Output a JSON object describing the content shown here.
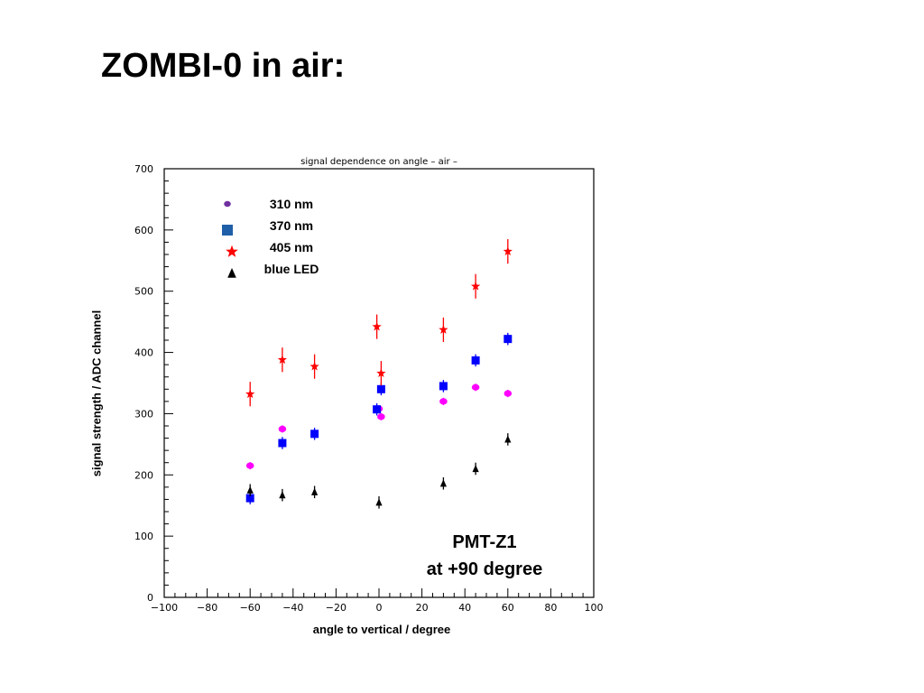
{
  "slide": {
    "title": "ZOMBI-0 in air:"
  },
  "chart_data": {
    "type": "scatter",
    "title": "signal dependence on angle – air –",
    "xlabel": "angle to vertical / degree",
    "ylabel": "signal strength / ADC channel",
    "xlim": [
      -100,
      100
    ],
    "ylim": [
      0,
      700
    ],
    "xticks": [
      -100,
      -80,
      -60,
      -40,
      -20,
      0,
      20,
      40,
      60,
      80,
      100
    ],
    "xtick_labels": [
      "−100",
      "−80",
      "−60",
      "−40",
      "−20",
      "0",
      "20",
      "40",
      "60",
      "80",
      "100"
    ],
    "yticks": [
      0,
      100,
      200,
      300,
      400,
      500,
      600,
      700
    ],
    "ytick_labels": [
      "0",
      "100",
      "200",
      "300",
      "400",
      "500",
      "600",
      "700"
    ],
    "grid": false,
    "legend_position": "top-left",
    "annotation": [
      "PMT-Z1",
      "at  +90 degree"
    ],
    "series": [
      {
        "name": "310 nm",
        "marker": "circle",
        "color": "#ff00ff",
        "legend_color": "#7030a0",
        "x": [
          -60,
          -45,
          -30,
          0,
          1,
          30,
          45,
          60
        ],
        "y": [
          215,
          275,
          268,
          308,
          295,
          320,
          343,
          333
        ],
        "err": [
          6,
          6,
          6,
          6,
          6,
          6,
          6,
          6
        ]
      },
      {
        "name": "370 nm",
        "marker": "square",
        "color": "#0000ff",
        "legend_color": "#1f5fa8",
        "x": [
          -60,
          -45,
          -30,
          -1,
          1,
          30,
          45,
          60
        ],
        "y": [
          162,
          252,
          267,
          307,
          340,
          345,
          387,
          422
        ],
        "err": [
          10,
          10,
          10,
          10,
          10,
          10,
          10,
          10
        ]
      },
      {
        "name": "405 nm",
        "marker": "star",
        "color": "#ff0000",
        "legend_color": "#ff0000",
        "x": [
          -60,
          -45,
          -30,
          -1,
          1,
          30,
          45,
          60
        ],
        "y": [
          332,
          388,
          377,
          442,
          366,
          437,
          508,
          565
        ],
        "err": [
          20,
          20,
          20,
          20,
          20,
          20,
          20,
          20
        ]
      },
      {
        "name": "blue LED",
        "marker": "triangle",
        "color": "#000000",
        "legend_color": "#000000",
        "x": [
          -60,
          -45,
          -30,
          0,
          30,
          45,
          60
        ],
        "y": [
          175,
          167,
          172,
          155,
          186,
          210,
          258
        ],
        "err": [
          10,
          10,
          10,
          10,
          10,
          10,
          10
        ]
      }
    ]
  }
}
